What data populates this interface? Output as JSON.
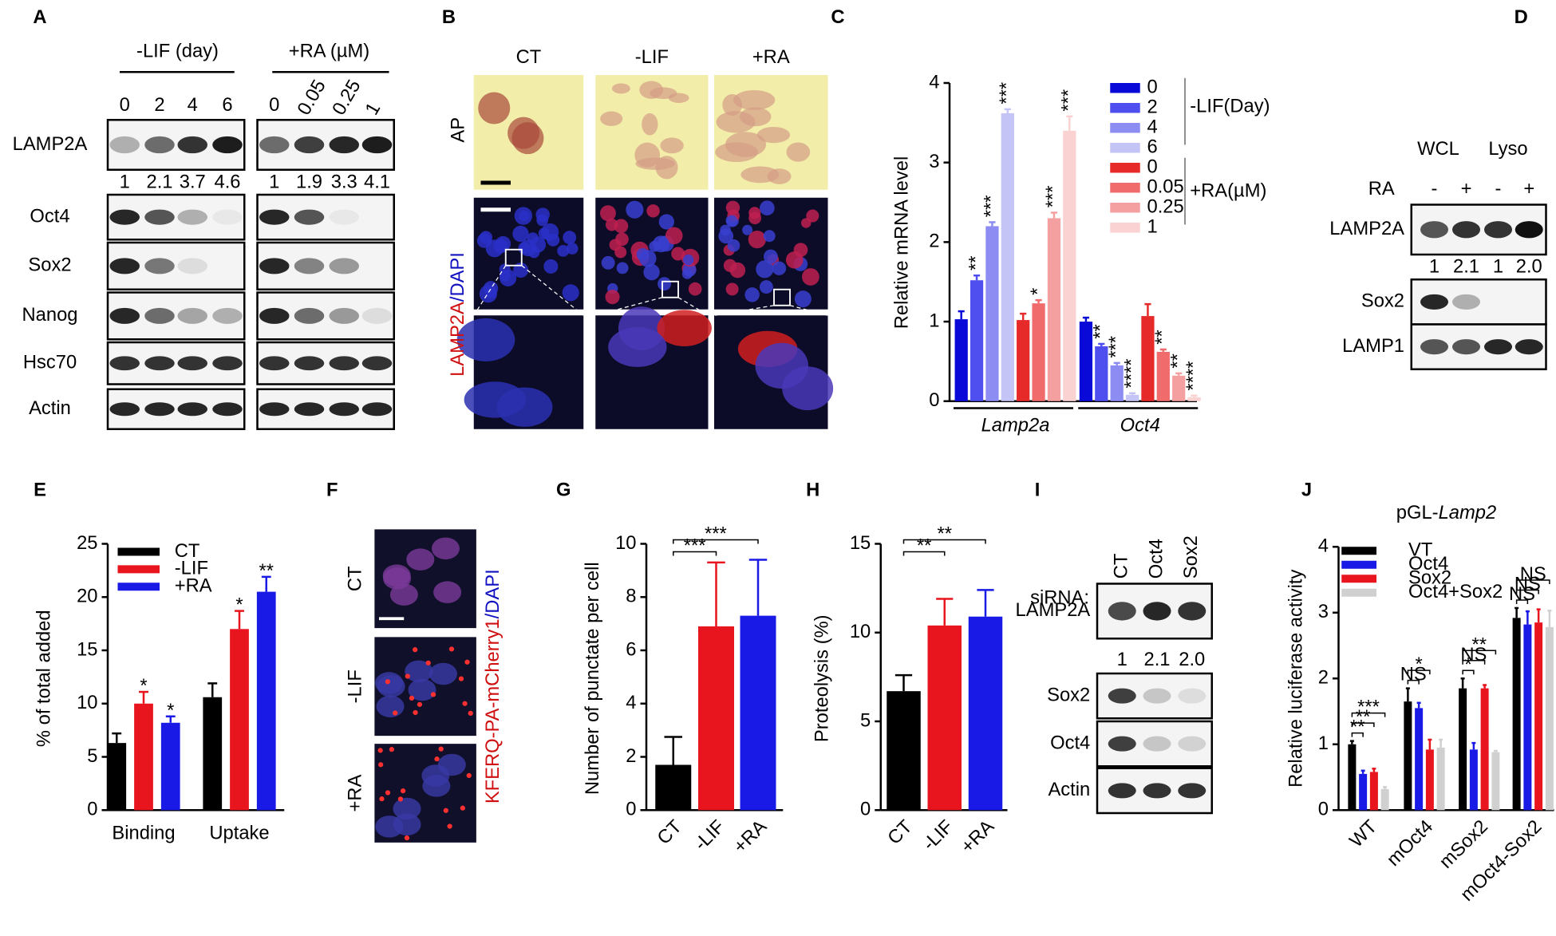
{
  "panels": [
    "A",
    "B",
    "C",
    "D",
    "E",
    "F",
    "G",
    "H",
    "I",
    "J"
  ],
  "blot_a": {
    "headers": [
      "-LIF (day)",
      "+RA (µM)"
    ],
    "lanes": [
      "0",
      "2",
      "4",
      "6",
      "0",
      "0.05",
      "0.25",
      "1"
    ],
    "rows": [
      "LAMP2A",
      "Oct4",
      "Sox2",
      "Nanog",
      "Hsc70",
      "Actin"
    ],
    "quant": [
      "1",
      "2.1",
      "3.7",
      "4.6",
      "1",
      "1.9",
      "3.3",
      "4.1"
    ]
  },
  "images_b": {
    "columns": [
      "CT",
      "-LIF",
      "+RA"
    ],
    "row_labels": [
      "AP",
      "LAMP2A",
      "/DAPI"
    ]
  },
  "blot_d": {
    "groups": [
      "WCL",
      "Lyso"
    ],
    "treatment": "RA",
    "signs": [
      "-",
      "+",
      "-",
      "+"
    ],
    "rows": [
      "LAMP2A",
      "Sox2",
      "LAMP1"
    ],
    "quant": [
      "1",
      "2.1",
      "1",
      "2.0"
    ]
  },
  "images_f": {
    "rows": [
      "CT",
      "-LIF",
      "+RA"
    ],
    "label_parts": [
      "KFERQ-PA-mCherry1",
      "/DAPI"
    ]
  },
  "blot_i": {
    "prefix": "siRNA:",
    "lanes": [
      "CT",
      "Oct4",
      "Sox2"
    ],
    "rows": [
      "LAMP2A",
      "Sox2",
      "Oct4",
      "Actin"
    ],
    "quant": [
      "1",
      "2.1",
      "2.0"
    ]
  },
  "chart_data": [
    {
      "type": "bar",
      "y_label": "Relative mRNA level",
      "categories": [
        "Lamp2a",
        "Oct4"
      ],
      "ylim": [
        0,
        4
      ],
      "yticks": [
        0,
        1,
        2,
        3,
        4
      ],
      "legend_groups": [
        "-LIF(Day)",
        "+RA(µM)"
      ],
      "series": [
        {
          "name": "0",
          "color": "#0a0ad8",
          "values": [
            1.03,
            1.0
          ],
          "errors": [
            0.1,
            0.05
          ],
          "stars": [
            null,
            null
          ]
        },
        {
          "name": "2",
          "color": "#4f4ff0",
          "values": [
            1.52,
            0.69
          ],
          "errors": [
            0.06,
            0.03
          ],
          "stars": [
            "**",
            "**"
          ]
        },
        {
          "name": "4",
          "color": "#8c8cf2",
          "values": [
            2.2,
            0.45
          ],
          "errors": [
            0.05,
            0.03
          ],
          "stars": [
            "***",
            "***"
          ]
        },
        {
          "name": "6",
          "color": "#c4c4f6",
          "values": [
            3.62,
            0.08
          ],
          "errors": [
            0.05,
            0.02
          ],
          "stars": [
            "***",
            "****"
          ]
        },
        {
          "name": "0",
          "color": "#e62a2a",
          "values": [
            1.02,
            1.07
          ],
          "errors": [
            0.08,
            0.15
          ],
          "stars": [
            null,
            null
          ]
        },
        {
          "name": "0.05",
          "color": "#f06c6c",
          "values": [
            1.23,
            0.62
          ],
          "errors": [
            0.04,
            0.03
          ],
          "stars": [
            "*",
            "**"
          ]
        },
        {
          "name": "0.25",
          "color": "#f5a0a0",
          "values": [
            2.3,
            0.32
          ],
          "errors": [
            0.07,
            0.03
          ],
          "stars": [
            "***",
            "**"
          ]
        },
        {
          "name": "1",
          "color": "#fad2d2",
          "values": [
            3.4,
            0.05
          ],
          "errors": [
            0.18,
            0.02
          ],
          "stars": [
            "***",
            "****"
          ]
        }
      ]
    },
    {
      "type": "bar",
      "y_label": "% of total added",
      "categories": [
        "Binding",
        "Uptake"
      ],
      "ylim": [
        0,
        25
      ],
      "yticks": [
        0,
        5,
        10,
        15,
        20,
        25
      ],
      "series": [
        {
          "name": "CT",
          "color": "#000000",
          "values": [
            6.3,
            10.6
          ],
          "errors": [
            0.9,
            1.3
          ],
          "stars": [
            null,
            null
          ]
        },
        {
          "name": "-LIF",
          "color": "#e8141e",
          "values": [
            10.0,
            17.0
          ],
          "errors": [
            1.1,
            1.7
          ],
          "stars": [
            "*",
            "*"
          ]
        },
        {
          "name": "+RA",
          "color": "#1a1ae6",
          "values": [
            8.2,
            20.5
          ],
          "errors": [
            0.6,
            1.4
          ],
          "stars": [
            "*",
            "**"
          ]
        }
      ]
    },
    {
      "type": "bar",
      "y_label": "Number of punctate per cell",
      "categories": [
        "CT",
        "-LIF",
        "+RA"
      ],
      "ylim": [
        0,
        10
      ],
      "yticks": [
        0,
        2,
        4,
        6,
        8,
        10
      ],
      "values": [
        1.7,
        6.9,
        7.3
      ],
      "errors": [
        1.05,
        2.4,
        2.1
      ],
      "colors": [
        "#000000",
        "#e8141e",
        "#1a1ae6"
      ],
      "brackets": [
        {
          "from": 0,
          "to": 1,
          "label": "***"
        },
        {
          "from": 0,
          "to": 2,
          "label": "***"
        }
      ]
    },
    {
      "type": "bar",
      "y_label": "Proteolysis (%)",
      "categories": [
        "CT",
        "-LIF",
        "+RA"
      ],
      "ylim": [
        0,
        15
      ],
      "yticks": [
        0,
        5,
        10,
        15
      ],
      "values": [
        6.7,
        10.4,
        10.9
      ],
      "errors": [
        0.9,
        1.5,
        1.5
      ],
      "colors": [
        "#000000",
        "#e8141e",
        "#1a1ae6"
      ],
      "brackets": [
        {
          "from": 0,
          "to": 1,
          "label": "**"
        },
        {
          "from": 0,
          "to": 2,
          "label": "**"
        }
      ]
    },
    {
      "type": "bar",
      "title_parts": [
        "pGL-",
        "Lamp2"
      ],
      "y_label": "Relative luciferase activity",
      "categories": [
        "WT",
        "mOct4",
        "mSox2",
        "mOct4-Sox2"
      ],
      "ylim": [
        0,
        4
      ],
      "yticks": [
        0,
        1,
        2,
        3,
        4
      ],
      "series": [
        {
          "name": "VT",
          "color": "#000000",
          "values": [
            1.0,
            1.65,
            1.85,
            2.92
          ],
          "errors": [
            0.05,
            0.2,
            0.15,
            0.15
          ]
        },
        {
          "name": "Oct4",
          "color": "#1a1ae6",
          "values": [
            0.55,
            1.55,
            0.92,
            2.82
          ],
          "errors": [
            0.05,
            0.08,
            0.1,
            0.2
          ]
        },
        {
          "name": "Sox2",
          "color": "#e8141e",
          "values": [
            0.58,
            0.92,
            1.85,
            2.85
          ],
          "errors": [
            0.05,
            0.15,
            0.05,
            0.2
          ]
        },
        {
          "name": "Oct4+Sox2",
          "color": "#d0d0d0",
          "values": [
            0.32,
            0.95,
            0.88,
            2.78
          ],
          "errors": [
            0.03,
            0.12,
            0.02,
            0.25
          ]
        }
      ],
      "brackets": [
        {
          "category": 0,
          "from": 0,
          "to": 1,
          "label": "**"
        },
        {
          "category": 0,
          "from": 0,
          "to": 2,
          "label": "**"
        },
        {
          "category": 0,
          "from": 0,
          "to": 3,
          "label": "***"
        },
        {
          "category": 1,
          "from": 0,
          "to": 1,
          "label": "NS"
        },
        {
          "category": 1,
          "from": 0,
          "to": 2,
          "label": "*"
        },
        {
          "category": 2,
          "from": 0,
          "to": 1,
          "label": "*"
        },
        {
          "category": 2,
          "from": 0,
          "to": 2,
          "label": "NS"
        },
        {
          "category": 2,
          "from": 0,
          "to": 3,
          "label": "**"
        },
        {
          "category": 3,
          "from": 0,
          "to": 1,
          "label": "NS"
        },
        {
          "category": 3,
          "from": 0,
          "to": 2,
          "label": "NS"
        },
        {
          "category": 3,
          "from": 0,
          "to": 3,
          "label": "NS"
        }
      ]
    }
  ]
}
